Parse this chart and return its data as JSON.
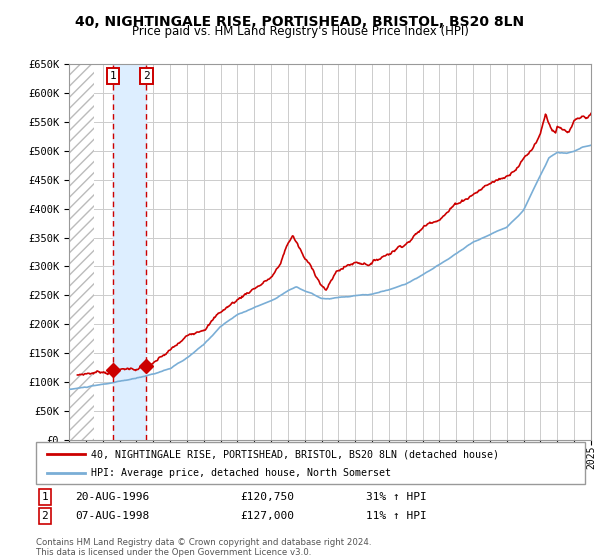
{
  "title": "40, NIGHTINGALE RISE, PORTISHEAD, BRISTOL, BS20 8LN",
  "subtitle": "Price paid vs. HM Land Registry's House Price Index (HPI)",
  "sale1_date": "20-AUG-1996",
  "sale1_price": 120750,
  "sale1_label": "1",
  "sale1_year": 1996.63,
  "sale2_date": "07-AUG-1998",
  "sale2_price": 127000,
  "sale2_label": "2",
  "sale2_year": 1998.6,
  "legend_line1": "40, NIGHTINGALE RISE, PORTISHEAD, BRISTOL, BS20 8LN (detached house)",
  "legend_line2": "HPI: Average price, detached house, North Somerset",
  "table_row1": [
    "1",
    "20-AUG-1996",
    "£120,750",
    "31% ↑ HPI"
  ],
  "table_row2": [
    "2",
    "07-AUG-1998",
    "£127,000",
    "11% ↑ HPI"
  ],
  "footer": "Contains HM Land Registry data © Crown copyright and database right 2024.\nThis data is licensed under the Open Government Licence v3.0.",
  "xmin": 1994,
  "xmax": 2025,
  "ymin": 0,
  "ymax": 650000,
  "hatch_end_year": 1995.5,
  "red_color": "#cc0000",
  "blue_color": "#7aaed6",
  "shade_color": "#ddeeff",
  "background_color": "#ffffff",
  "grid_color": "#cccccc",
  "hatch_color": "#bbbbbb"
}
